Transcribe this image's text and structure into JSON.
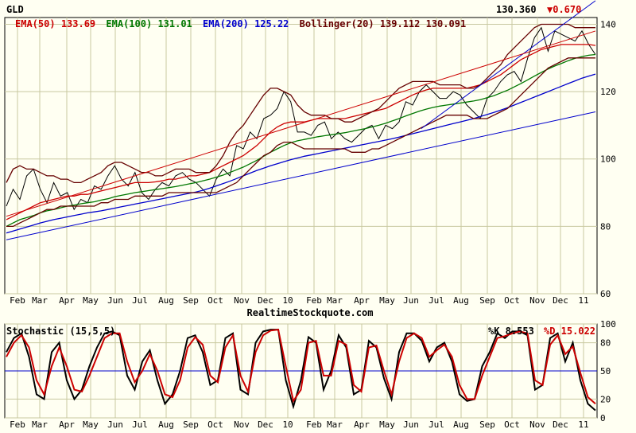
{
  "chart_data": [
    {
      "type": "line",
      "ticker": "GLD",
      "last_price": "130.360",
      "change": "▼0.670",
      "legend": [
        {
          "label": "EMA(50)",
          "value": "133.69",
          "color": "#cc0000"
        },
        {
          "label": "EMA(100)",
          "value": "131.01",
          "color": "#007700"
        },
        {
          "label": "EMA(200)",
          "value": "125.22",
          "color": "#0000cc"
        },
        {
          "label": "Bollinger(20)",
          "value": "139.112 130.091",
          "color": "#660000"
        }
      ],
      "ylim": [
        60,
        142
      ],
      "yticks": [
        60,
        80,
        100,
        120,
        140
      ],
      "x_labels": [
        "Feb",
        "Mar",
        "Apr",
        "May",
        "Jun",
        "Jul",
        "Aug",
        "Sep",
        "Oct",
        "Nov",
        "Dec",
        "10",
        "Feb",
        "Mar",
        "Apr",
        "May",
        "Jun",
        "Jul",
        "Aug",
        "Sep",
        "Oct",
        "Nov",
        "Dec",
        "11"
      ],
      "footer": "RealtimeStockquote.com",
      "series": [
        {
          "name": "GLD",
          "color": "#000000",
          "values": [
            86,
            91,
            88,
            95,
            97,
            91,
            87,
            93,
            89,
            90,
            85,
            88,
            87,
            92,
            91,
            95,
            98,
            94,
            92,
            96,
            90,
            88,
            91,
            93,
            92,
            95,
            96,
            94,
            93,
            91,
            89,
            94,
            97,
            95,
            104,
            103,
            108,
            106,
            112,
            113,
            115,
            120,
            117,
            108,
            108,
            107,
            110,
            111,
            106,
            108,
            106,
            105,
            107,
            109,
            110,
            106,
            110,
            109,
            111,
            117,
            116,
            120,
            122,
            120,
            118,
            118,
            120,
            119,
            116,
            114,
            112,
            118,
            120,
            123,
            125,
            126,
            123,
            130,
            136,
            139,
            132,
            138,
            137,
            136,
            135,
            138,
            134,
            131
          ]
        },
        {
          "name": "EMA(50)",
          "color": "#cc0000",
          "values": [
            82,
            83,
            84,
            85,
            86,
            87,
            87.5,
            88,
            88.5,
            89,
            89,
            89.5,
            89.5,
            90,
            90.5,
            91,
            91.5,
            92,
            92.5,
            93,
            93,
            93,
            93.2,
            93.5,
            94,
            94,
            94.5,
            95,
            95,
            95.5,
            96,
            97,
            98,
            99,
            100,
            101,
            102.5,
            104,
            106,
            108,
            109.5,
            110.5,
            111,
            111,
            111,
            111.5,
            112,
            112,
            112,
            112,
            112,
            112.5,
            113,
            113.5,
            114,
            114.5,
            115,
            116,
            117,
            118,
            119,
            119.8,
            120.5,
            121,
            121,
            121,
            121,
            121,
            121,
            121.5,
            122,
            123,
            124,
            125,
            126.5,
            128,
            129.5,
            130.5,
            131.5,
            132.5,
            133,
            133.5,
            134,
            134,
            134,
            134,
            134,
            133.7
          ]
        },
        {
          "name": "EMA(100)",
          "color": "#007700",
          "values": [
            80,
            81,
            82,
            82.6,
            83.2,
            84,
            84.6,
            85,
            85.5,
            86,
            86.3,
            86.7,
            87,
            87.3,
            87.8,
            88.2,
            88.8,
            89.2,
            89.6,
            90,
            90.3,
            90.6,
            90.9,
            91.2,
            91.5,
            91.8,
            92.2,
            92.6,
            93,
            93.5,
            94,
            94.6,
            95.2,
            96,
            96.8,
            97.6,
            98.6,
            99.6,
            100.8,
            102,
            103,
            104,
            104.8,
            105.4,
            105.8,
            106.2,
            106.6,
            106.9,
            107.2,
            107.5,
            107.8,
            108.2,
            108.6,
            109,
            109.5,
            110,
            110.6,
            111.3,
            112,
            112.8,
            113.5,
            114.2,
            114.8,
            115.3,
            115.7,
            116,
            116.3,
            116.6,
            116.9,
            117.2,
            117.6,
            118.2,
            118.8,
            119.6,
            120.4,
            121.4,
            122.4,
            123.5,
            124.6,
            125.7,
            126.7,
            127.6,
            128.4,
            129.2,
            129.9,
            130.4,
            130.8,
            131
          ]
        },
        {
          "name": "EMA(200)",
          "color": "#0000cc",
          "values": [
            78,
            78.6,
            79.2,
            79.8,
            80.4,
            81,
            81.5,
            82,
            82.4,
            82.8,
            83.2,
            83.6,
            84,
            84.3,
            84.6,
            85,
            85.4,
            85.8,
            86.2,
            86.6,
            87,
            87.4,
            87.8,
            88.2,
            88.6,
            89,
            89.4,
            89.8,
            90.2,
            90.7,
            91.3,
            92,
            92.7,
            93.4,
            94.2,
            95,
            95.8,
            96.6,
            97.3,
            98,
            98.6,
            99.2,
            99.8,
            100.3,
            100.8,
            101.2,
            101.6,
            102,
            102.4,
            102.8,
            103.2,
            103.6,
            104,
            104.4,
            104.8,
            105.2,
            105.6,
            106,
            106.5,
            107,
            107.5,
            108,
            108.5,
            109,
            109.5,
            110,
            110.5,
            111,
            111.5,
            112,
            112.6,
            113.2,
            113.8,
            114.5,
            115.2,
            116,
            116.8,
            117.6,
            118.4,
            119.2,
            120,
            120.8,
            121.6,
            122.4,
            123.2,
            124,
            124.6,
            125.2
          ]
        },
        {
          "name": "Bollinger upper",
          "color": "#660000",
          "values": [
            93,
            97,
            98,
            97,
            97,
            96,
            95,
            95,
            94,
            94,
            93,
            93,
            94,
            95,
            96,
            98,
            99,
            99,
            98,
            97,
            96,
            96,
            95,
            95,
            96,
            97,
            97,
            97,
            96,
            96,
            96,
            98,
            101,
            105,
            108,
            110,
            113,
            116,
            119,
            121,
            121,
            120,
            119,
            116,
            114,
            113,
            113,
            113,
            112,
            112,
            111,
            111,
            112,
            113,
            114,
            115,
            117,
            119,
            121,
            122,
            123,
            123,
            123,
            123,
            122,
            122,
            122,
            122,
            121,
            121,
            122,
            124,
            126,
            128,
            131,
            133,
            135,
            137,
            139,
            140,
            140,
            140,
            140,
            140,
            139,
            139,
            139,
            139
          ]
        },
        {
          "name": "Bollinger lower",
          "color": "#660000",
          "values": [
            80,
            80,
            81,
            82,
            83,
            84,
            85,
            85,
            86,
            86,
            86,
            86,
            86,
            86,
            87,
            87,
            88,
            88,
            88,
            89,
            89,
            89,
            89,
            89,
            90,
            90,
            90,
            90,
            90,
            90,
            90,
            90,
            91,
            92,
            93,
            95,
            97,
            99,
            101,
            102,
            104,
            105,
            105,
            104,
            103,
            103,
            103,
            103,
            103,
            103,
            103,
            102,
            102,
            102,
            103,
            103,
            104,
            105,
            106,
            107,
            108,
            109,
            110,
            111,
            112,
            113,
            113,
            113,
            113,
            112,
            112,
            112,
            113,
            114,
            115,
            117,
            119,
            121,
            123,
            125,
            127,
            128,
            129,
            130,
            130,
            130,
            130,
            130
          ]
        }
      ],
      "trendlines": [
        {
          "color": "#0000cc",
          "from": [
            100,
            109
          ],
          "to": [
            142,
            147
          ]
        },
        {
          "color": "#0000cc",
          "from": [
            0,
            76
          ],
          "to": [
            142,
            114
          ]
        },
        {
          "color": "#cc0000",
          "from": [
            0,
            83
          ],
          "to": [
            142,
            138
          ]
        }
      ]
    },
    {
      "type": "line",
      "title": "Stochastic (15,5,5)",
      "k_label": "%K 8.553",
      "d_label": "%D 15.022",
      "ylim": [
        0,
        100
      ],
      "yticks": [
        0,
        20,
        50,
        80,
        100
      ],
      "x_labels": [
        "Feb",
        "Mar",
        "Apr",
        "May",
        "Jun",
        "Jul",
        "Aug",
        "Sep",
        "Oct",
        "Nov",
        "Dec",
        "10",
        "Feb",
        "Mar",
        "Apr",
        "May",
        "Jun",
        "Jul",
        "Aug",
        "Sep",
        "Oct",
        "Nov",
        "Dec",
        "11"
      ],
      "series": [
        {
          "name": "%K",
          "color": "#000000",
          "values": [
            70,
            85,
            90,
            65,
            25,
            20,
            70,
            80,
            40,
            20,
            30,
            55,
            75,
            90,
            92,
            88,
            45,
            30,
            60,
            72,
            40,
            15,
            25,
            50,
            85,
            88,
            70,
            35,
            40,
            85,
            90,
            30,
            25,
            80,
            92,
            94,
            94,
            40,
            12,
            40,
            86,
            80,
            30,
            50,
            88,
            75,
            25,
            30,
            82,
            75,
            42,
            20,
            70,
            90,
            90,
            82,
            60,
            75,
            80,
            60,
            25,
            18,
            20,
            55,
            70,
            90,
            85,
            92,
            92,
            88,
            30,
            35,
            85,
            90,
            60,
            80,
            40,
            15,
            8
          ]
        },
        {
          "name": "%D",
          "color": "#cc0000",
          "values": [
            65,
            80,
            88,
            75,
            40,
            25,
            55,
            75,
            55,
            30,
            28,
            45,
            65,
            85,
            90,
            90,
            60,
            38,
            50,
            68,
            50,
            25,
            22,
            40,
            75,
            86,
            78,
            45,
            38,
            75,
            88,
            45,
            28,
            70,
            88,
            93,
            94,
            55,
            18,
            30,
            80,
            82,
            45,
            45,
            82,
            78,
            35,
            28,
            75,
            77,
            50,
            25,
            60,
            85,
            90,
            85,
            65,
            72,
            78,
            65,
            35,
            20,
            20,
            45,
            65,
            85,
            87,
            90,
            92,
            90,
            40,
            35,
            78,
            88,
            68,
            76,
            48,
            22,
            15
          ]
        }
      ]
    }
  ]
}
